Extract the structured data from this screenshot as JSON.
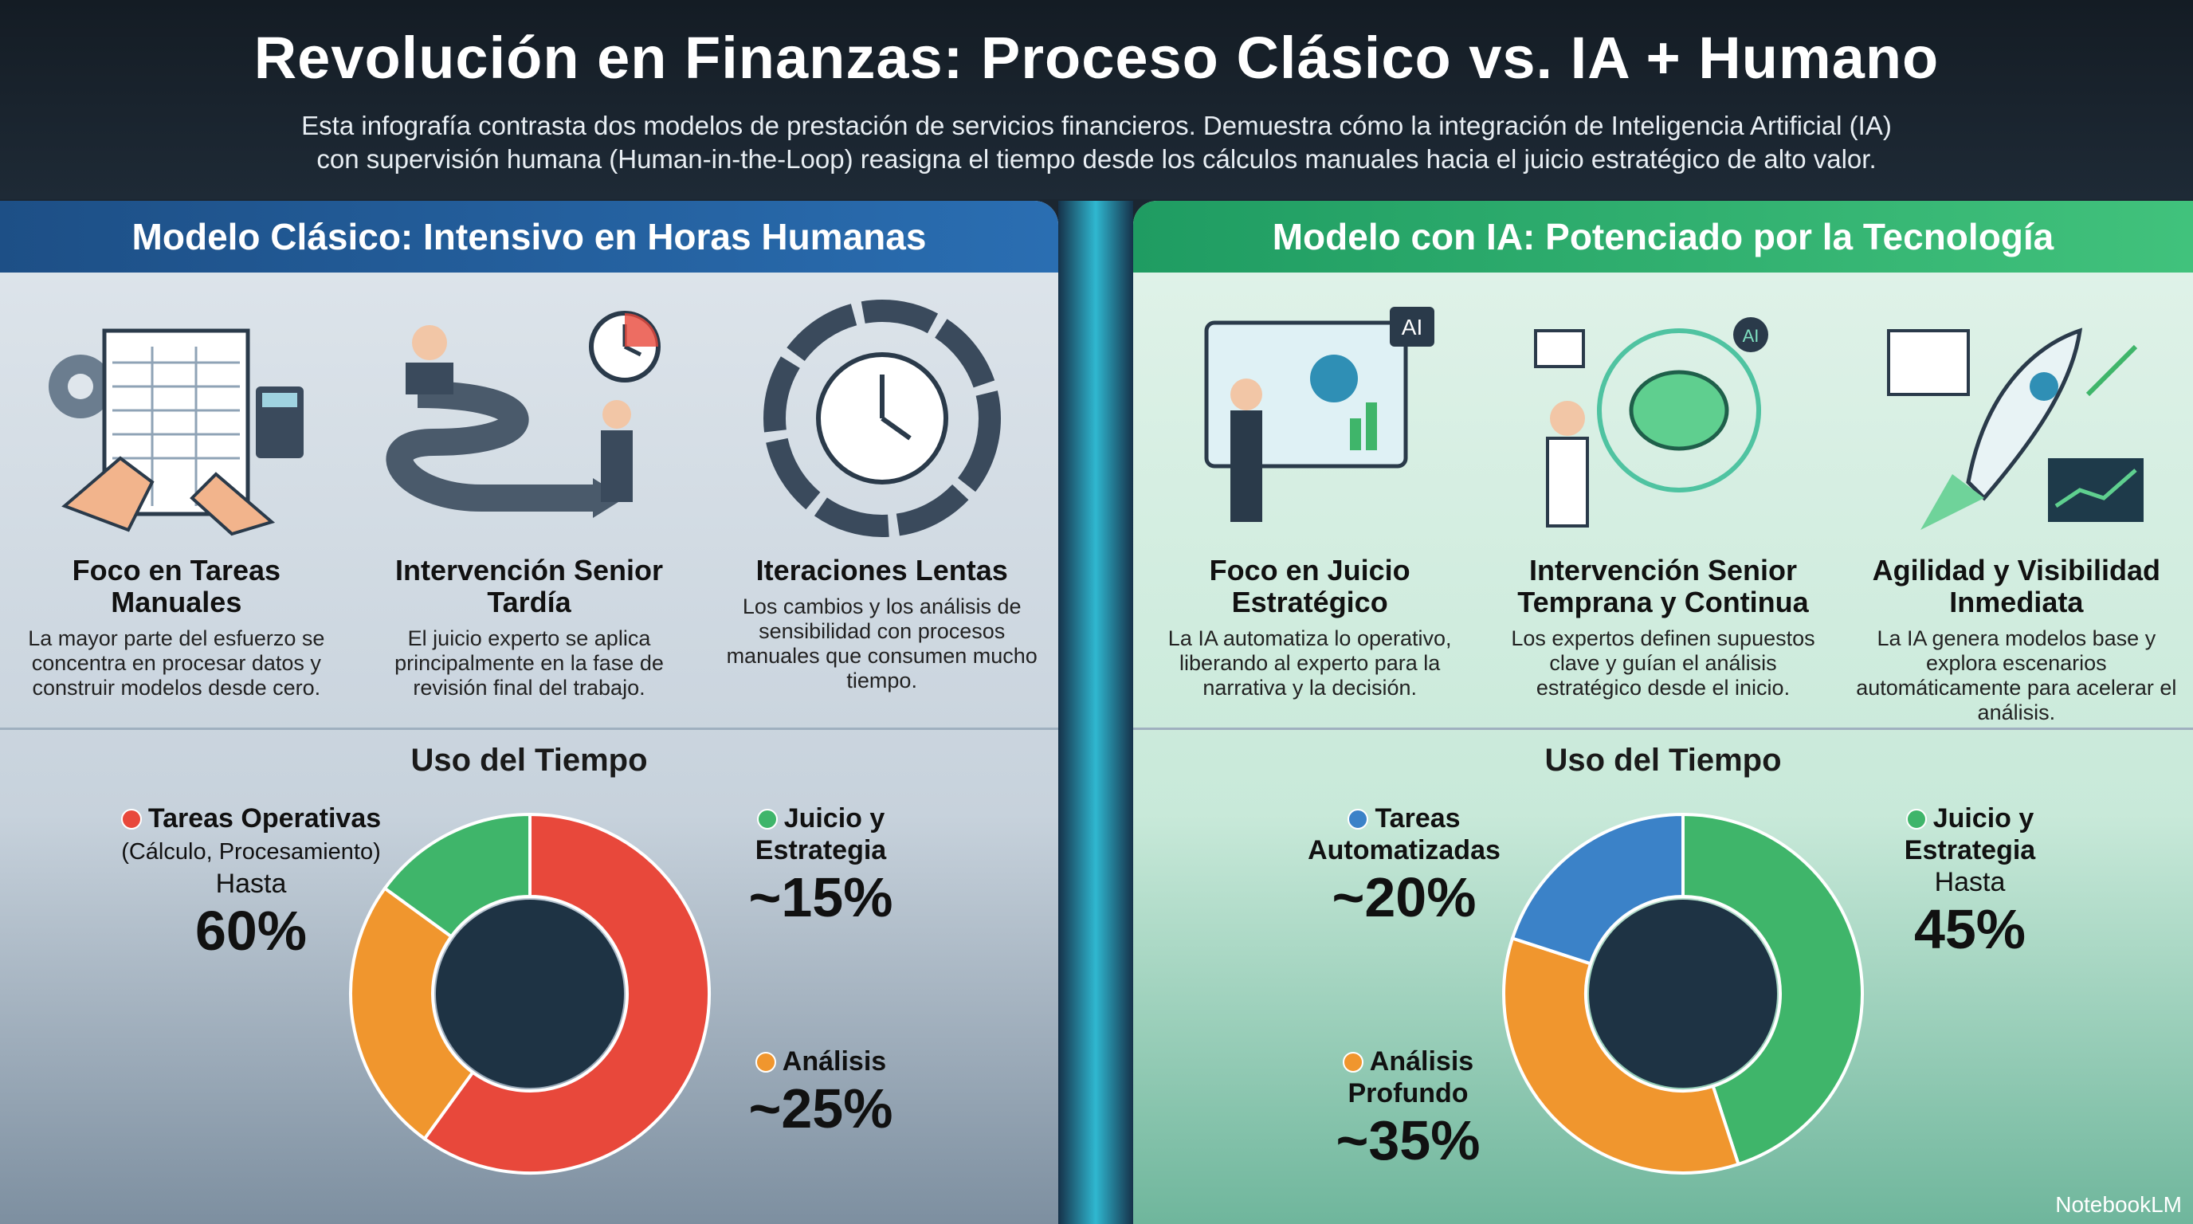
{
  "header": {
    "title": "Revolución en Finanzas: Proceso Clásico vs. IA + Humano",
    "subtitle_line1": "Esta infografía contrasta dos modelos de prestación de servicios financieros. Demuestra cómo la integración de Inteligencia Artificial (IA)",
    "subtitle_line2": "con supervisión humana (Human-in-the-Loop) reasigna el tiempo desde los cálculos manuales hacia el juicio estratégico de alto valor."
  },
  "left": {
    "title": "Modelo Clásico: Intensivo en Horas Humanas",
    "cards": [
      {
        "title": "Foco en Tareas Manuales",
        "text": "La mayor parte del esfuerzo se concentra en procesar datos y construir modelos desde cero.",
        "icon": "spreadsheet-calculator-icon"
      },
      {
        "title": "Intervención Senior Tardía",
        "text": "El juicio experto se aplica principalmente en la fase de revisión final del trabajo.",
        "icon": "winding-road-clock-icon"
      },
      {
        "title": "Iteraciones Lentas",
        "text": "Los cambios y los análisis de sensibilidad con procesos manuales que consumen mucho tiempo.",
        "icon": "clock-cycle-icon"
      }
    ],
    "time_title": "Uso del Tiempo",
    "segments": [
      {
        "label": "Tareas Operativas",
        "sub": "(Cálculo, Procesamiento)",
        "prefix": "Hasta",
        "value_text": "60%",
        "value": 60,
        "color": "#e8483b"
      },
      {
        "label": "Análisis",
        "value_text": "~25%",
        "value": 25,
        "color": "#f0962e"
      },
      {
        "label": "Juicio y Estrategia",
        "value_text": "~15%",
        "value": 15,
        "color": "#3fb56a"
      }
    ]
  },
  "right": {
    "title": "Modelo con IA: Potenciado por la Tecnología",
    "cards": [
      {
        "title": "Foco en Juicio Estratégico",
        "text": "La IA automatiza lo operativo, liberando al experto para la narrativa y la decisión.",
        "icon": "ai-dashboard-presenter-icon",
        "badge": "AI"
      },
      {
        "title": "Intervención Senior Temprana y Continua",
        "text": "Los expertos definen supuestos clave y guían el análisis estratégico desde el inicio.",
        "icon": "brain-network-icon",
        "badge": "AI"
      },
      {
        "title": "Agilidad y Visibilidad Inmediata",
        "text": "La IA genera modelos base y explora escenarios automáticamente para acelerar el análisis.",
        "icon": "rocket-growth-icon"
      }
    ],
    "time_title": "Uso del Tiempo",
    "segments": [
      {
        "label": "Juicio y Estrategia",
        "prefix": "Hasta",
        "value_text": "45%",
        "value": 45,
        "color": "#3fb56a"
      },
      {
        "label": "Análisis Profundo",
        "value_text": "~35%",
        "value": 35,
        "color": "#f0962e"
      },
      {
        "label": "Tareas Automatizadas",
        "value_text": "~20%",
        "value": 20,
        "color": "#3b82c8"
      }
    ]
  },
  "brand": "NotebookLM"
}
